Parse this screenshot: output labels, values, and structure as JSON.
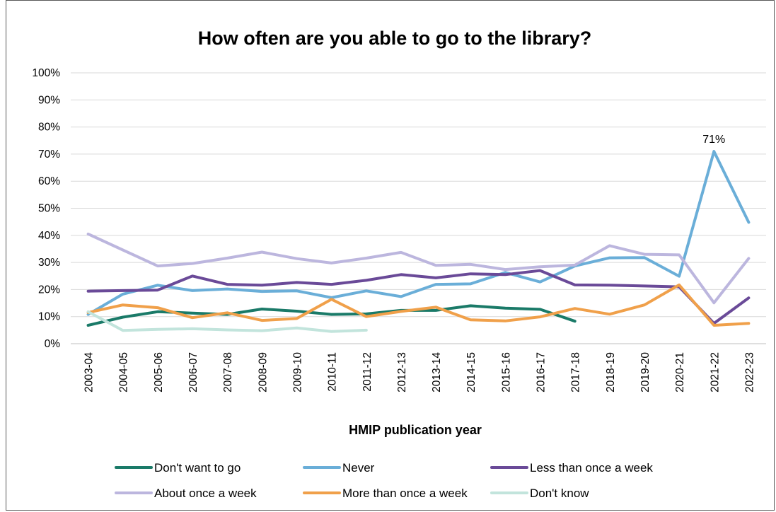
{
  "chart_data": {
    "type": "line",
    "title": "How often are you able to go to the library?",
    "xlabel": "HMIP publication year",
    "ylabel": "",
    "ylim": [
      0,
      100
    ],
    "yticks": [
      "0%",
      "10%",
      "20%",
      "30%",
      "40%",
      "50%",
      "60%",
      "70%",
      "80%",
      "90%",
      "100%"
    ],
    "grid": "horizontal",
    "legend_position": "bottom",
    "categories": [
      "2003-04",
      "2004-05",
      "2005-06",
      "2006-07",
      "2007-08",
      "2008-09",
      "2009-10",
      "2010-11",
      "2011-12",
      "2012-13",
      "2013-14",
      "2014-15",
      "2015-16",
      "2016-17",
      "2017-18",
      "2018-19",
      "2019-20",
      "2020-21",
      "2021-22",
      "2022-23"
    ],
    "series": [
      {
        "name": "Don't want to go",
        "color": "#1a7a68",
        "values": [
          6.8,
          9.8,
          11.8,
          11.3,
          10.8,
          12.8,
          12.0,
          10.8,
          11.0,
          12.3,
          12.3,
          14.0,
          13.1,
          12.7,
          8.3,
          null,
          null,
          null,
          null,
          null
        ]
      },
      {
        "name": "Never",
        "color": "#6aaed8",
        "values": [
          10.8,
          18.3,
          21.6,
          19.6,
          20.2,
          19.3,
          19.5,
          17.0,
          19.5,
          17.4,
          21.9,
          22.1,
          26.3,
          22.8,
          28.7,
          31.7,
          31.8,
          24.9,
          71.0,
          44.8
        ]
      },
      {
        "name": "Less than once a week",
        "color": "#6a4a98",
        "values": [
          19.4,
          19.6,
          19.8,
          25.0,
          21.9,
          21.6,
          22.6,
          21.9,
          23.4,
          25.5,
          24.3,
          25.8,
          25.5,
          27.0,
          21.7,
          21.6,
          21.3,
          21.0,
          7.5,
          16.9
        ]
      },
      {
        "name": "About once a week",
        "color": "#bcb6de",
        "values": [
          40.5,
          34.6,
          28.7,
          29.6,
          31.6,
          33.8,
          31.4,
          29.8,
          31.6,
          33.7,
          28.9,
          29.3,
          27.4,
          28.4,
          29.0,
          36.2,
          33.0,
          32.8,
          15.1,
          31.5
        ]
      },
      {
        "name": "More than once a week",
        "color": "#f0a04a",
        "values": [
          11.5,
          14.3,
          13.3,
          9.6,
          11.4,
          8.6,
          9.3,
          16.4,
          10.0,
          11.9,
          13.5,
          8.8,
          8.4,
          9.9,
          13.0,
          10.9,
          14.3,
          21.7,
          6.8,
          7.5
        ]
      },
      {
        "name": "Don't know",
        "color": "#c2e4dc",
        "values": [
          11.8,
          4.9,
          5.3,
          5.5,
          5.1,
          4.8,
          5.8,
          4.5,
          5.0,
          null,
          null,
          null,
          null,
          null,
          null,
          null,
          null,
          null,
          null,
          null
        ]
      }
    ],
    "annotations": [
      {
        "series": "Never",
        "category": "2021-22",
        "text": "71%"
      }
    ]
  }
}
